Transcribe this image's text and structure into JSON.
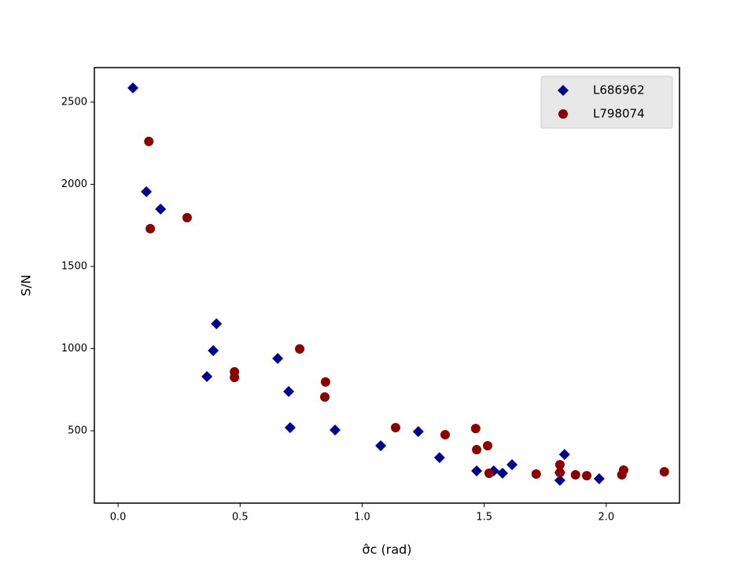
{
  "chart_data": {
    "type": "scatter",
    "x_label": "σ̂c (rad)",
    "y_label": "S/N",
    "xlim": [
      -0.097,
      2.3
    ],
    "ylim": [
      60,
      2710
    ],
    "xticks": [
      {
        "value": 0,
        "label": "0.0"
      },
      0.5,
      {
        "value": 1,
        "label": "1.0"
      },
      1.5,
      {
        "value": 2,
        "label": "2.0"
      }
    ],
    "yticks": [
      500,
      1000,
      1500,
      2000,
      2500
    ],
    "legend": "upper right",
    "series": [
      {
        "name": "L686962",
        "color": "#00008b",
        "marker": "diamond",
        "x": [
          0.061,
          0.116,
          0.174,
          0.364,
          0.39,
          0.403,
          0.654,
          0.699,
          0.705,
          0.889,
          1.076,
          1.23,
          1.317,
          1.469,
          1.539,
          1.575,
          1.614,
          1.81,
          1.81,
          1.829,
          1.971
        ],
        "values": [
          2586,
          1955,
          1849,
          830,
          988,
          1151,
          940,
          739,
          519,
          505,
          409,
          495,
          337,
          256,
          256,
          242,
          294,
          199,
          246,
          356,
          208
        ]
      },
      {
        "name": "L798074",
        "color": "#8b0000",
        "marker": "circle",
        "x": [
          0.126,
          0.132,
          0.283,
          0.477,
          0.477,
          0.744,
          0.85,
          0.847,
          1.137,
          1.34,
          1.465,
          1.469,
          1.514,
          1.52,
          1.713,
          1.81,
          1.81,
          1.874,
          1.92,
          2.064,
          2.071,
          2.238
        ],
        "values": [
          2261,
          1730,
          1797,
          859,
          825,
          998,
          797,
          706,
          519,
          476,
          514,
          385,
          409,
          242,
          237,
          294,
          246,
          232,
          227,
          232,
          261,
          251
        ]
      }
    ]
  }
}
